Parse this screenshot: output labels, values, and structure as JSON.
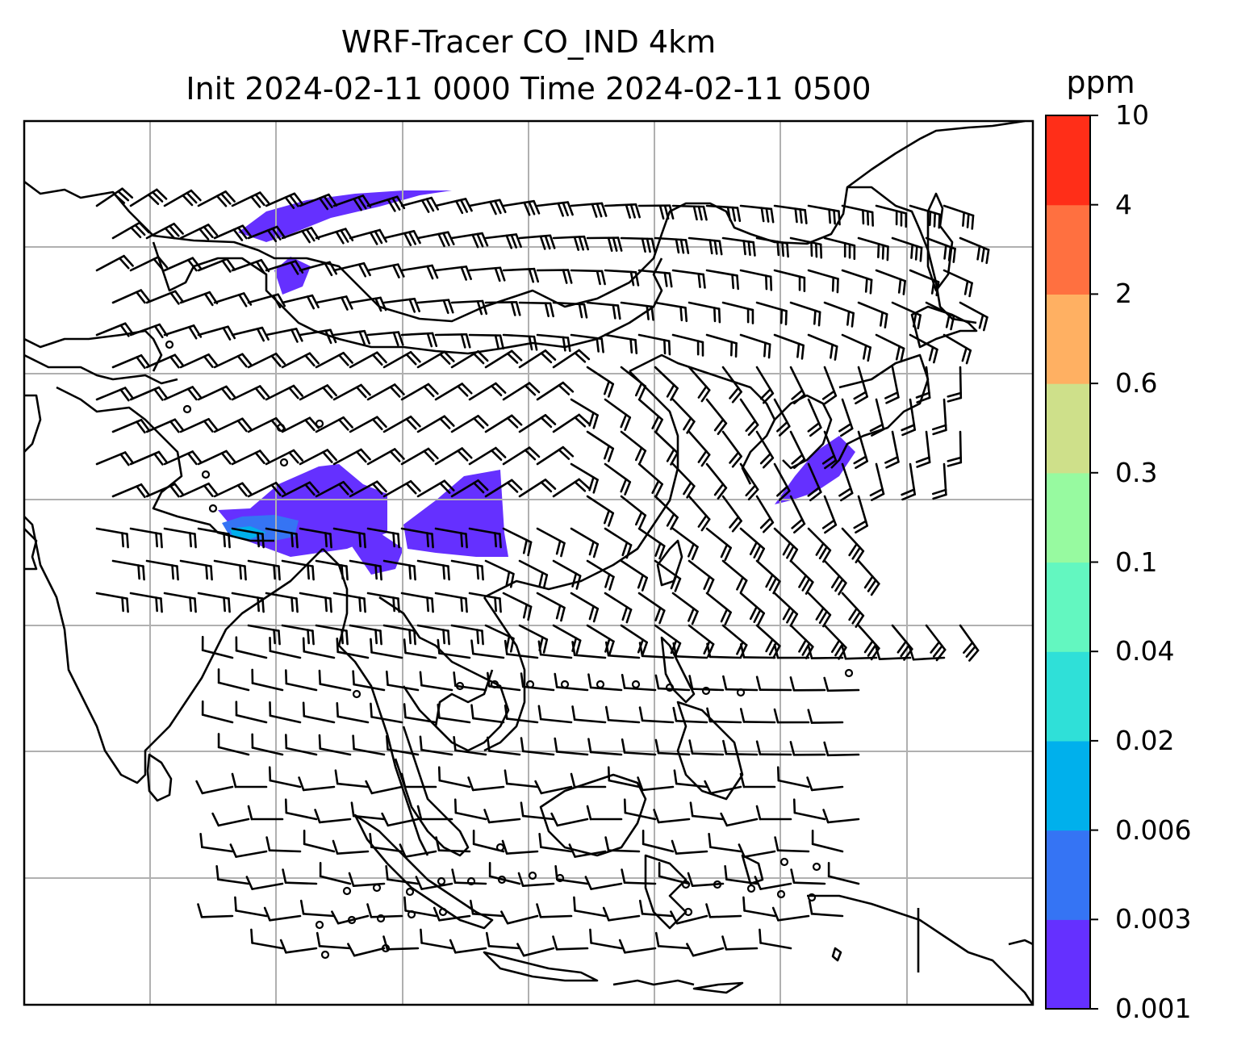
{
  "title": {
    "line1": "WRF-Tracer CO_IND 4km",
    "line2": "Init 2024-02-11 0000 Time 2024-02-11 0500"
  },
  "colorbar": {
    "unit": "ppm",
    "levels": [
      "0.001",
      "0.003",
      "0.006",
      "0.02",
      "0.04",
      "0.1",
      "0.3",
      "0.6",
      "2",
      "4",
      "10"
    ],
    "colors": [
      "#6530ff",
      "#3574f4",
      "#00b0ec",
      "#2fe0d8",
      "#63f7c0",
      "#97faa0",
      "#cee08a",
      "#ffb062",
      "#ff7040",
      "#ff2e18"
    ]
  },
  "map": {
    "grid_color": "#b0b0b0",
    "coastline_color": "#000000",
    "wind_barb_color": "#000000"
  }
}
